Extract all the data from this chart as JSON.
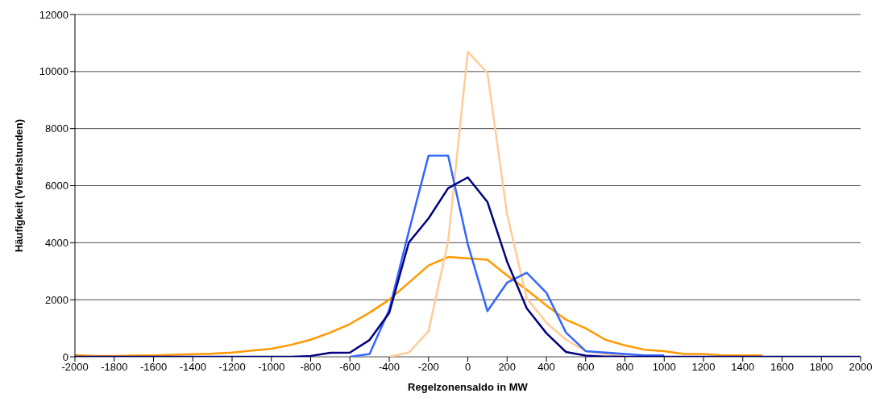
{
  "chart_data": {
    "type": "line",
    "xlabel": "Regelzonensaldo in MW",
    "ylabel": "Häufigkeit (Viertelstunden)",
    "x": [
      -2000,
      -1900,
      -1800,
      -1700,
      -1600,
      -1500,
      -1400,
      -1300,
      -1200,
      -1100,
      -1000,
      -900,
      -800,
      -700,
      -600,
      -500,
      -400,
      -300,
      -200,
      -100,
      0,
      100,
      200,
      300,
      400,
      500,
      600,
      700,
      800,
      900,
      1000,
      1100,
      1200,
      1300,
      1400,
      1500,
      1600,
      1700,
      1800,
      1900,
      2000
    ],
    "series": [
      {
        "color": "#ff9900",
        "values": [
          60,
          30,
          30,
          40,
          50,
          70,
          90,
          110,
          150,
          220,
          280,
          420,
          600,
          850,
          1150,
          1550,
          2000,
          2600,
          3200,
          3500,
          3450,
          3400,
          2850,
          2350,
          1800,
          1300,
          1000,
          600,
          400,
          250,
          200,
          100,
          100,
          50,
          50,
          50,
          null,
          null,
          null,
          null,
          null
        ]
      },
      {
        "color": "#ffcc99",
        "values": [
          null,
          null,
          null,
          null,
          null,
          null,
          null,
          null,
          null,
          null,
          null,
          null,
          null,
          null,
          null,
          null,
          0,
          150,
          900,
          4050,
          10700,
          9950,
          5000,
          2050,
          1200,
          600,
          200,
          100,
          50,
          null,
          null,
          null,
          null,
          null,
          null,
          null,
          null,
          null,
          null,
          null,
          null
        ]
      },
      {
        "color": "#3366ff",
        "values": [
          null,
          null,
          null,
          null,
          null,
          null,
          null,
          null,
          null,
          null,
          null,
          null,
          null,
          null,
          0,
          100,
          1650,
          4400,
          7050,
          7050,
          3950,
          1600,
          2600,
          2950,
          2250,
          850,
          200,
          150,
          100,
          50,
          50,
          null,
          null,
          null,
          null,
          null,
          null,
          null,
          null,
          null,
          null
        ]
      },
      {
        "color": "#000080",
        "values": [
          0,
          0,
          0,
          0,
          0,
          0,
          0,
          0,
          0,
          0,
          0,
          0,
          30,
          140,
          150,
          590,
          1540,
          4010,
          4850,
          5910,
          6290,
          5430,
          3340,
          1700,
          830,
          170,
          40,
          10,
          0,
          0,
          0,
          0,
          0,
          0,
          0,
          0,
          0,
          0,
          0,
          0,
          0
        ]
      }
    ],
    "xlim": [
      -2000,
      2000
    ],
    "xticks": [
      -2000,
      -1800,
      -1600,
      -1400,
      -1200,
      -1000,
      -800,
      -600,
      -400,
      -200,
      0,
      200,
      400,
      600,
      800,
      1000,
      1200,
      1400,
      1600,
      1800,
      2000
    ],
    "ylim": [
      0,
      12000
    ],
    "yticks": [
      0,
      2000,
      4000,
      6000,
      8000,
      10000,
      12000
    ],
    "grid": "y"
  }
}
